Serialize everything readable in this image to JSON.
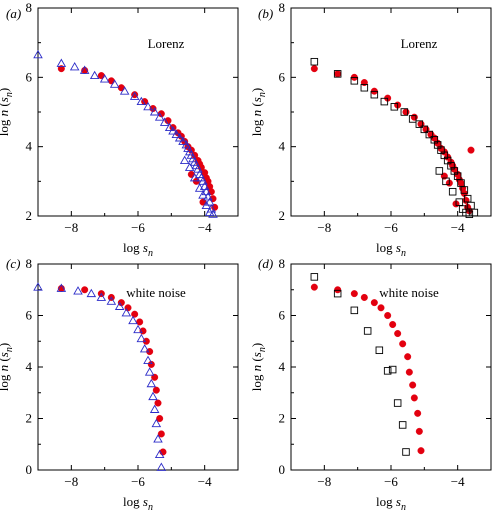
{
  "colors": {
    "circle": "#e3000f",
    "triangle": "#2b2bc8",
    "square": "#000000",
    "frame": "#000000"
  },
  "chart_data": [
    {
      "type": "scatter",
      "panel_label": "(a)",
      "annotation": "Lorenz",
      "xlabel": "log s_n",
      "ylabel": "log n (s_n)",
      "xlim": [
        -9.0,
        -3.0
      ],
      "ylim": [
        2,
        8
      ],
      "xticks": [
        -8,
        -6,
        -4
      ],
      "yticks": [
        2,
        4,
        6,
        8
      ],
      "series": [
        {
          "marker": "circle",
          "x": [
            -8.3,
            -7.6,
            -7.1,
            -6.8,
            -6.5,
            -6.1,
            -5.8,
            -5.55,
            -5.3,
            -5.1,
            -4.95,
            -4.8,
            -4.7,
            -4.6,
            -4.5,
            -4.4,
            -4.3,
            -4.2,
            -4.15,
            -4.1,
            -4.0,
            -3.95,
            -3.9,
            -3.85,
            -3.8,
            -3.75,
            -3.7,
            -4.4,
            -4.25,
            -4.05
          ],
          "y": [
            6.25,
            6.2,
            6.05,
            5.9,
            5.7,
            5.5,
            5.3,
            5.1,
            4.95,
            4.75,
            4.55,
            4.4,
            4.3,
            4.15,
            4.0,
            3.9,
            3.75,
            3.6,
            3.5,
            3.4,
            3.25,
            3.1,
            3.0,
            2.85,
            2.7,
            2.5,
            2.25,
            3.2,
            3.0,
            2.4
          ]
        },
        {
          "marker": "triangle",
          "x": [
            -9.0,
            -8.3,
            -7.9,
            -7.6,
            -7.3,
            -7.0,
            -6.7,
            -6.4,
            -6.1,
            -5.9,
            -5.7,
            -5.5,
            -5.35,
            -5.2,
            -5.05,
            -4.95,
            -4.85,
            -4.75,
            -4.65,
            -4.55,
            -4.5,
            -4.45,
            -4.4,
            -4.35,
            -4.3,
            -4.25,
            -4.2,
            -4.15,
            -4.1,
            -4.05,
            -4.0,
            -3.95,
            -3.9,
            -3.85,
            -3.8,
            -3.75,
            -4.6,
            -4.45,
            -4.3,
            -4.15,
            -4.05,
            -3.95,
            -3.85
          ],
          "y": [
            6.65,
            6.4,
            6.3,
            6.2,
            6.05,
            5.95,
            5.8,
            5.6,
            5.45,
            5.3,
            5.15,
            5.0,
            4.85,
            4.7,
            4.55,
            4.45,
            4.35,
            4.25,
            4.15,
            4.05,
            3.95,
            3.85,
            3.75,
            3.65,
            3.55,
            3.45,
            3.35,
            3.2,
            3.1,
            3.0,
            2.85,
            2.7,
            2.55,
            2.4,
            2.2,
            2.05,
            3.6,
            3.4,
            3.1,
            2.8,
            2.6,
            2.3,
            2.1
          ]
        }
      ]
    },
    {
      "type": "scatter",
      "panel_label": "(b)",
      "annotation": "Lorenz",
      "xlabel": "log s_n",
      "ylabel": "log n (s_n)",
      "xlim": [
        -9.0,
        -3.0
      ],
      "ylim": [
        2,
        8
      ],
      "xticks": [
        -8,
        -6,
        -4
      ],
      "yticks": [
        2,
        4,
        6,
        8
      ],
      "series": [
        {
          "marker": "circle",
          "x": [
            -8.3,
            -7.6,
            -7.1,
            -6.8,
            -6.5,
            -6.1,
            -5.8,
            -5.55,
            -5.3,
            -5.1,
            -4.95,
            -4.8,
            -4.7,
            -4.6,
            -4.5,
            -4.4,
            -4.3,
            -4.2,
            -4.15,
            -4.1,
            -4.0,
            -3.95,
            -3.9,
            -3.85,
            -3.8,
            -3.75,
            -3.7,
            -4.4,
            -4.25,
            -4.05,
            -3.65,
            -3.6
          ],
          "y": [
            6.25,
            6.1,
            6.0,
            5.85,
            5.6,
            5.4,
            5.2,
            5.0,
            4.85,
            4.65,
            4.5,
            4.35,
            4.25,
            4.1,
            3.95,
            3.85,
            3.7,
            3.55,
            3.45,
            3.35,
            3.2,
            3.05,
            2.95,
            2.8,
            2.65,
            2.45,
            2.25,
            3.15,
            2.95,
            2.35,
            2.15,
            3.9
          ]
        },
        {
          "marker": "square",
          "x": [
            -8.3,
            -7.6,
            -7.1,
            -6.8,
            -6.5,
            -6.2,
            -5.9,
            -5.6,
            -5.35,
            -5.15,
            -5.0,
            -4.85,
            -4.7,
            -4.6,
            -4.5,
            -4.4,
            -4.3,
            -4.2,
            -4.1,
            -4.0,
            -3.9,
            -3.8,
            -3.7,
            -3.6,
            -3.5,
            -4.55,
            -4.35,
            -4.15,
            -3.95,
            -3.85,
            -3.75,
            -3.65
          ],
          "y": [
            6.45,
            6.1,
            5.9,
            5.7,
            5.5,
            5.3,
            5.15,
            5.0,
            4.8,
            4.65,
            4.5,
            4.35,
            4.2,
            4.05,
            3.9,
            3.75,
            3.6,
            3.45,
            3.3,
            3.15,
            2.95,
            2.75,
            2.5,
            2.3,
            2.1,
            3.3,
            3.0,
            2.7,
            2.4,
            2.2,
            2.1,
            2.05
          ]
        }
      ]
    },
    {
      "type": "scatter",
      "panel_label": "(c)",
      "annotation": "white noise",
      "xlabel": "log s_n",
      "ylabel": "log n (s_n)",
      "xlim": [
        -9.0,
        -3.0
      ],
      "ylim": [
        0,
        8
      ],
      "xticks": [
        -8,
        -6,
        -4
      ],
      "yticks": [
        0,
        2,
        4,
        6,
        8
      ],
      "series": [
        {
          "marker": "circle",
          "x": [
            -8.3,
            -7.6,
            -7.1,
            -6.8,
            -6.5,
            -6.3,
            -6.1,
            -5.95,
            -5.85,
            -5.75,
            -5.65,
            -5.6,
            -5.5,
            -5.45,
            -5.4,
            -5.35,
            -5.3,
            -5.25
          ],
          "y": [
            7.05,
            7.0,
            6.85,
            6.7,
            6.5,
            6.3,
            6.05,
            5.75,
            5.4,
            5.0,
            4.6,
            4.1,
            3.6,
            3.1,
            2.6,
            2.0,
            1.4,
            0.7
          ]
        },
        {
          "marker": "triangle",
          "x": [
            -9.0,
            -8.3,
            -7.8,
            -7.4,
            -7.1,
            -6.8,
            -6.55,
            -6.35,
            -6.15,
            -6.0,
            -5.9,
            -5.8,
            -5.7,
            -5.65,
            -5.6,
            -5.55,
            -5.5,
            -5.45,
            -5.4,
            -5.35,
            -5.3
          ],
          "y": [
            7.1,
            7.05,
            6.95,
            6.85,
            6.7,
            6.55,
            6.35,
            6.1,
            5.8,
            5.45,
            5.1,
            4.7,
            4.25,
            3.8,
            3.35,
            2.85,
            2.35,
            1.8,
            1.2,
            0.6,
            0.1
          ]
        }
      ]
    },
    {
      "type": "scatter",
      "panel_label": "(d)",
      "annotation": "white noise",
      "xlabel": "log s_n",
      "ylabel": "log n (s_n)",
      "xlim": [
        -9.0,
        -3.0
      ],
      "ylim": [
        0,
        8
      ],
      "xticks": [
        -8,
        -6,
        -4
      ],
      "yticks": [
        0,
        2,
        4,
        6,
        8
      ],
      "series": [
        {
          "marker": "circle",
          "x": [
            -8.3,
            -7.6,
            -7.1,
            -6.8,
            -6.5,
            -6.3,
            -6.1,
            -5.95,
            -5.8,
            -5.65,
            -5.5,
            -5.45,
            -5.35,
            -5.3,
            -5.2,
            -5.15,
            -5.1
          ],
          "y": [
            7.1,
            7.0,
            6.85,
            6.7,
            6.5,
            6.3,
            6.0,
            5.65,
            5.3,
            4.9,
            4.4,
            3.8,
            3.3,
            2.8,
            2.2,
            1.5,
            0.75
          ]
        },
        {
          "marker": "square",
          "x": [
            -8.3,
            -7.6,
            -7.1,
            -6.7,
            -6.35,
            -6.1,
            -5.95,
            -5.8,
            -5.65,
            -5.55
          ],
          "y": [
            7.5,
            6.85,
            6.2,
            5.4,
            4.65,
            3.85,
            3.9,
            2.6,
            1.75,
            0.7
          ]
        }
      ]
    }
  ]
}
